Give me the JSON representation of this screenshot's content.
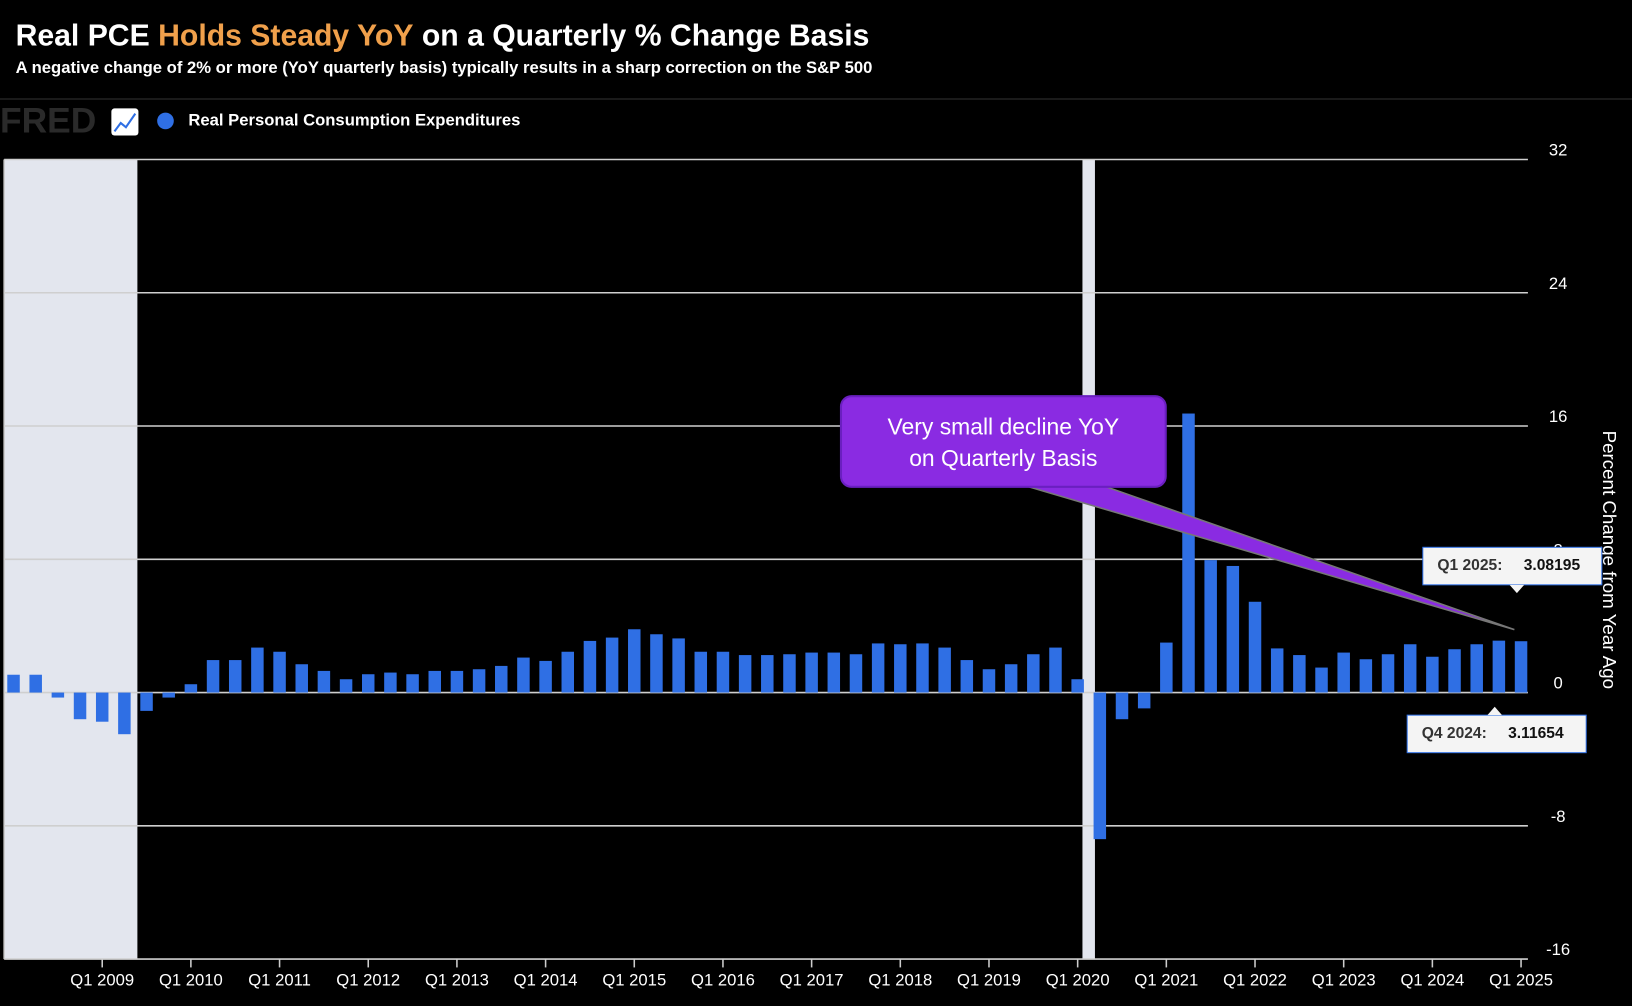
{
  "chart_data": {
    "type": "bar",
    "title": {
      "lead": "Real PCE",
      "highlight": "Holds Steady YoY",
      "rest": "on a Quarterly % Change Basis"
    },
    "subtitle": "A negative change of 2% or more (YoY quarterly basis) typically results in a sharp correction on the S&P 500",
    "source_logo": "FRED",
    "y_axis_label": "Percent Change from Year Ago",
    "ylim": [
      -16,
      32
    ],
    "yticks": [
      -16,
      -8,
      0,
      8,
      16,
      24,
      32
    ],
    "grid": true,
    "categories": [
      null,
      null,
      null,
      null,
      "Q1 2009",
      null,
      null,
      null,
      "Q1 2010",
      null,
      null,
      null,
      "Q1 2011",
      null,
      null,
      null,
      "Q1 2012",
      null,
      null,
      null,
      "Q1 2013",
      null,
      null,
      null,
      "Q1 2014",
      null,
      null,
      null,
      "Q1 2015",
      null,
      null,
      null,
      "Q1 2016",
      null,
      null,
      null,
      "Q1 2017",
      null,
      null,
      null,
      "Q1 2018",
      null,
      null,
      null,
      "Q1 2019",
      null,
      null,
      null,
      "Q1 2020",
      null,
      null,
      null,
      "Q1 2021",
      null,
      null,
      null,
      "Q1 2022",
      null,
      null,
      null,
      "Q1 2023",
      null,
      null,
      null,
      "Q1 2024",
      null,
      null,
      null,
      "Q1 2025"
    ],
    "series": [
      {
        "name": "Real Personal Consumption Expenditures",
        "color": "#2f6fe4",
        "values": [
          1.07,
          1.07,
          -0.3,
          -1.6,
          -1.75,
          -2.5,
          -1.1,
          -0.3,
          0.5,
          1.95,
          1.95,
          2.7,
          2.45,
          1.7,
          1.3,
          0.8,
          1.1,
          1.2,
          1.1,
          1.3,
          1.3,
          1.4,
          1.6,
          2.1,
          1.9,
          2.45,
          3.1,
          3.3,
          3.8,
          3.5,
          3.25,
          2.45,
          2.45,
          2.25,
          2.25,
          2.3,
          2.4,
          2.4,
          2.3,
          2.95,
          2.9,
          2.95,
          2.7,
          1.95,
          1.4,
          1.7,
          2.3,
          2.7,
          0.8,
          -8.8,
          -1.6,
          -0.95,
          3.0,
          16.75,
          7.95,
          7.6,
          5.45,
          2.65,
          2.25,
          1.5,
          2.4,
          2.0,
          2.3,
          2.9,
          2.15,
          2.6,
          2.9,
          3.11654,
          3.08195
        ]
      }
    ],
    "annotation": [
      "Very small decline YoY",
      "on Quarterly Basis"
    ],
    "tooltips": [
      {
        "label": "Q1 2025:",
        "index": 68
      },
      {
        "label": "Q4 2024:",
        "index": 67
      }
    ]
  }
}
